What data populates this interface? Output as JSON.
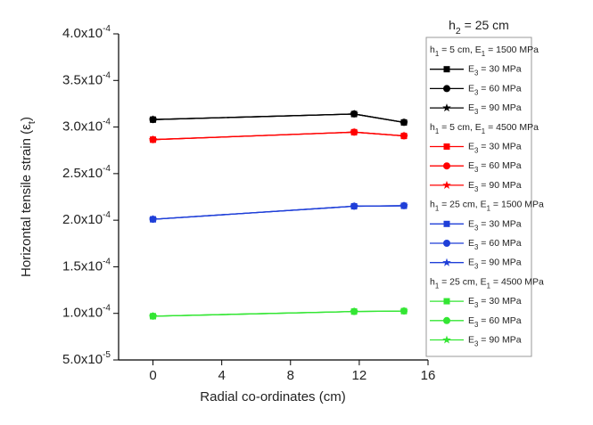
{
  "chart_data": {
    "type": "line",
    "title": "h2 = 25 cm",
    "title_color": "#1f3fd8",
    "x_label": "Radial co-ordinates (cm)",
    "y_label": "Horizontal tensile strain (εt)",
    "x": [
      0,
      11.7,
      14.6
    ],
    "xlim": [
      -2,
      16
    ],
    "xticks": [
      0,
      4,
      8,
      12,
      16
    ],
    "ylim": [
      5e-05,
      0.0004
    ],
    "yticks": [
      {
        "value": 5e-05,
        "label": "5.0x10",
        "exponent": "-5"
      },
      {
        "value": 0.0001,
        "label": "1.0x10",
        "exponent": "-4"
      },
      {
        "value": 0.00015,
        "label": "1.5x10",
        "exponent": "-4"
      },
      {
        "value": 0.0002,
        "label": "2.0x10",
        "exponent": "-4"
      },
      {
        "value": 0.00025,
        "label": "2.5x10",
        "exponent": "-4"
      },
      {
        "value": 0.0003,
        "label": "3.0x10",
        "exponent": "-4"
      },
      {
        "value": 0.00035,
        "label": "3.5x10",
        "exponent": "-4"
      },
      {
        "value": 0.0004,
        "label": "4.0x10",
        "exponent": "-4"
      }
    ],
    "legend_groups": [
      {
        "name": "h1 = 5 cm, E1 = 1500 MPa",
        "color": "#666666"
      },
      {
        "name": "h1 = 5 cm, E1 = 4500 MPa",
        "color": "#e02a2a"
      },
      {
        "name": "h1 = 25 cm, E1 = 1500 MPa",
        "color": "#1a72c8"
      },
      {
        "name": "h1 = 25 cm, E1 = 4500 MPa",
        "color": "#3cb043"
      }
    ],
    "series": [
      {
        "name": "E3 = 30 MPa",
        "group": 0,
        "marker": "square",
        "color": "#000000",
        "values": [
          0.000308,
          0.000314,
          0.000305
        ]
      },
      {
        "name": "E3 = 60 MPa",
        "group": 0,
        "marker": "circle",
        "color": "#000000",
        "values": [
          0.000308,
          0.000314,
          0.000305
        ]
      },
      {
        "name": "E3 = 90 MPa",
        "group": 0,
        "marker": "star",
        "color": "#000000",
        "values": [
          0.000308,
          0.000314,
          0.000305
        ]
      },
      {
        "name": "E3 = 30 MPa",
        "group": 1,
        "marker": "square",
        "color": "#ff0000",
        "values": [
          0.0002865,
          0.0002945,
          0.0002905
        ]
      },
      {
        "name": "E3 = 60 MPa",
        "group": 1,
        "marker": "circle",
        "color": "#ff0000",
        "values": [
          0.0002865,
          0.0002945,
          0.0002905
        ]
      },
      {
        "name": "E3 = 90 MPa",
        "group": 1,
        "marker": "star",
        "color": "#ff0000",
        "values": [
          0.0002865,
          0.0002945,
          0.0002905
        ]
      },
      {
        "name": "E3 = 30 MPa",
        "group": 2,
        "marker": "square",
        "color": "#1f3fd8",
        "values": [
          0.000201,
          0.000215,
          0.0002155
        ]
      },
      {
        "name": "E3 = 60 MPa",
        "group": 2,
        "marker": "circle",
        "color": "#1f3fd8",
        "values": [
          0.000201,
          0.000215,
          0.0002155
        ]
      },
      {
        "name": "E3 = 90 MPa",
        "group": 2,
        "marker": "star",
        "color": "#1f3fd8",
        "values": [
          0.000201,
          0.000215,
          0.0002155
        ]
      },
      {
        "name": "E3 = 30 MPa",
        "group": 3,
        "marker": "square",
        "color": "#33e633",
        "values": [
          9.7e-05,
          0.000102,
          0.0001025
        ]
      },
      {
        "name": "E3 = 60 MPa",
        "group": 3,
        "marker": "circle",
        "color": "#33e633",
        "values": [
          9.7e-05,
          0.000102,
          0.0001025
        ]
      },
      {
        "name": "E3 = 90 MPa",
        "group": 3,
        "marker": "star",
        "color": "#33e633",
        "values": [
          9.7e-05,
          0.000102,
          0.0001025
        ]
      }
    ]
  }
}
